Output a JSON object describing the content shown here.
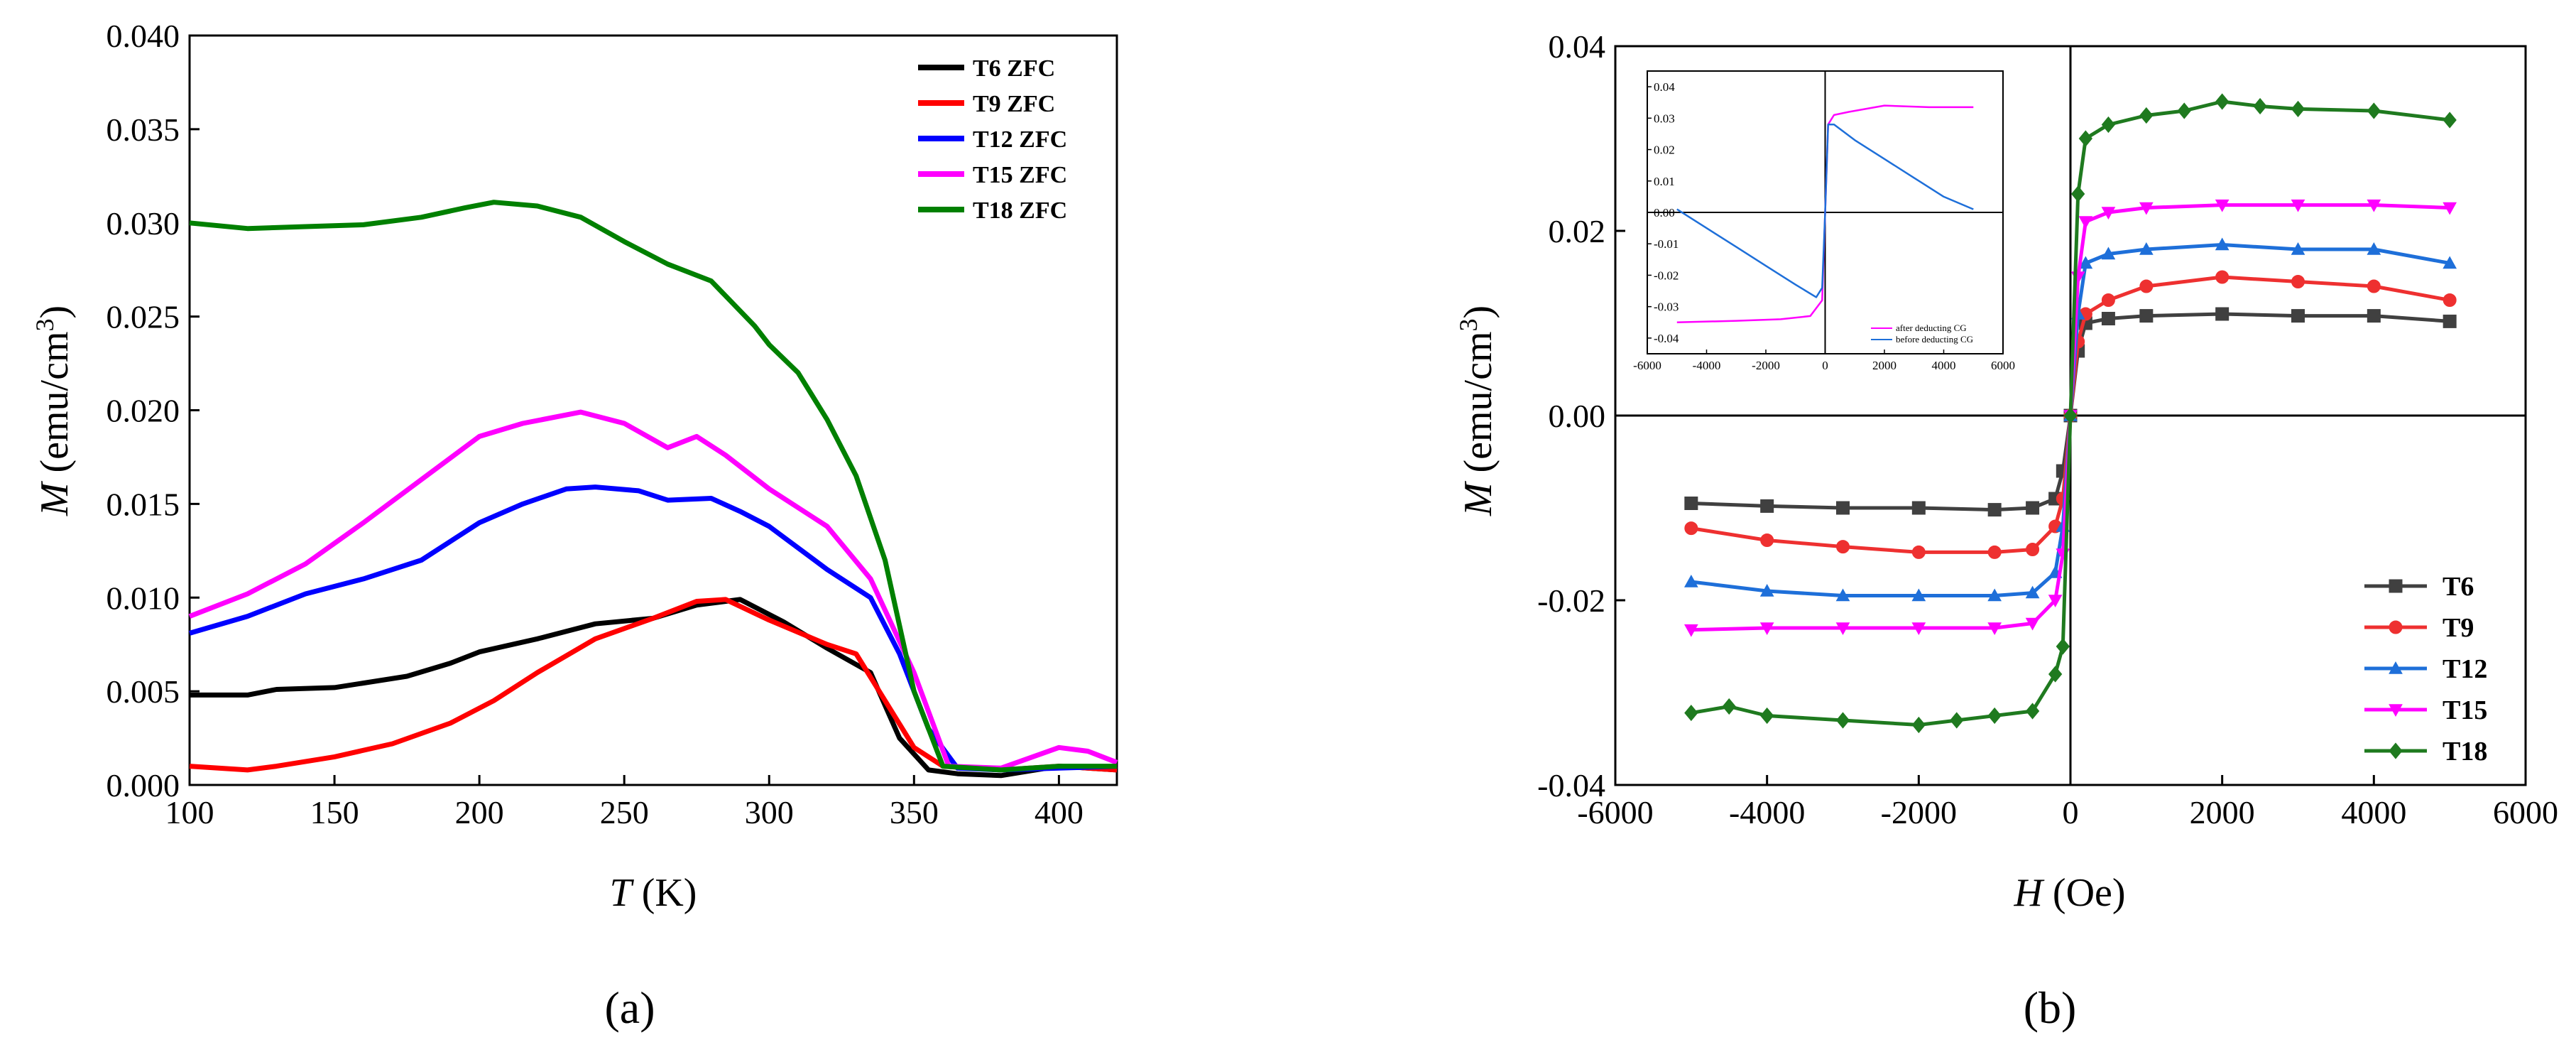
{
  "chart_data": [
    {
      "type": "line",
      "panel": "a",
      "caption": "(a)",
      "xlabel_symbol": "T",
      "xlabel_unit": " (K)",
      "ylabel_symbol": "M",
      "ylabel_unit": " (emu/cm",
      "ylabel_sup": "3",
      "ylabel_close": ")",
      "xlim": [
        100,
        420
      ],
      "ylim": [
        0,
        0.04
      ],
      "xticks": [
        {
          "v": 100,
          "label": "100"
        },
        {
          "v": 150,
          "label": "150"
        },
        {
          "v": 200,
          "label": "200"
        },
        {
          "v": 250,
          "label": "250"
        },
        {
          "v": 300,
          "label": "300"
        },
        {
          "v": 350,
          "label": "350"
        },
        {
          "v": 400,
          "label": "400"
        }
      ],
      "yticks": [
        {
          "v": 0,
          "label": "0.000"
        },
        {
          "v": 0.005,
          "label": "0.005"
        },
        {
          "v": 0.01,
          "label": "0.010"
        },
        {
          "v": 0.015,
          "label": "0.015"
        },
        {
          "v": 0.02,
          "label": "0.020"
        },
        {
          "v": 0.025,
          "label": "0.025"
        },
        {
          "v": 0.03,
          "label": "0.030"
        },
        {
          "v": 0.035,
          "label": "0.035"
        },
        {
          "v": 0.04,
          "label": "0.040"
        }
      ],
      "legend_position": "top-right",
      "series": [
        {
          "name": "T6 ZFC",
          "color": "#000000",
          "x": [
            100,
            120,
            130,
            150,
            175,
            190,
            200,
            220,
            240,
            260,
            275,
            290,
            305,
            320,
            335,
            345,
            355,
            365,
            380,
            400,
            420
          ],
          "y": [
            0.0048,
            0.0048,
            0.0051,
            0.0052,
            0.0058,
            0.0065,
            0.0071,
            0.0078,
            0.0086,
            0.0089,
            0.0096,
            0.0099,
            0.0087,
            0.0073,
            0.006,
            0.0025,
            0.0008,
            0.0006,
            0.0005,
            0.001,
            0.0008
          ]
        },
        {
          "name": "T9 ZFC",
          "color": "#ff0000",
          "x": [
            100,
            120,
            130,
            150,
            170,
            190,
            205,
            220,
            240,
            260,
            275,
            285,
            300,
            320,
            330,
            340,
            350,
            360,
            380,
            400,
            420
          ],
          "y": [
            0.001,
            0.0008,
            0.001,
            0.0015,
            0.0022,
            0.0033,
            0.0045,
            0.006,
            0.0078,
            0.0089,
            0.0098,
            0.0099,
            0.0088,
            0.0075,
            0.007,
            0.0045,
            0.002,
            0.001,
            0.0008,
            0.001,
            0.0008
          ]
        },
        {
          "name": "T12 ZFC",
          "color": "#0000ff",
          "x": [
            100,
            120,
            140,
            160,
            180,
            200,
            215,
            230,
            240,
            255,
            265,
            280,
            290,
            300,
            320,
            335,
            345,
            355,
            365,
            380,
            400,
            420
          ],
          "y": [
            0.0081,
            0.009,
            0.0102,
            0.011,
            0.012,
            0.014,
            0.015,
            0.0158,
            0.0159,
            0.0157,
            0.0152,
            0.0153,
            0.0146,
            0.0138,
            0.0115,
            0.01,
            0.007,
            0.003,
            0.0009,
            0.0008,
            0.0009,
            0.001
          ]
        },
        {
          "name": "T15 ZFC",
          "color": "#ff00ff",
          "x": [
            100,
            120,
            140,
            160,
            180,
            200,
            215,
            235,
            250,
            265,
            275,
            285,
            300,
            320,
            335,
            350,
            362,
            380,
            400,
            410,
            420
          ],
          "y": [
            0.009,
            0.0102,
            0.0118,
            0.014,
            0.0163,
            0.0186,
            0.0193,
            0.0199,
            0.0193,
            0.018,
            0.0186,
            0.0176,
            0.0158,
            0.0138,
            0.011,
            0.006,
            0.001,
            0.0009,
            0.002,
            0.0018,
            0.0012
          ]
        },
        {
          "name": "T18 ZFC",
          "color": "#008000",
          "x": [
            100,
            120,
            140,
            160,
            180,
            195,
            205,
            220,
            235,
            250,
            265,
            280,
            295,
            300,
            310,
            320,
            330,
            340,
            350,
            360,
            380,
            400,
            420
          ],
          "y": [
            0.03,
            0.0297,
            0.0298,
            0.0299,
            0.0303,
            0.0308,
            0.0311,
            0.0309,
            0.0303,
            0.029,
            0.0278,
            0.0269,
            0.0245,
            0.0235,
            0.022,
            0.0195,
            0.0165,
            0.012,
            0.005,
            0.001,
            0.0008,
            0.001,
            0.001
          ]
        }
      ]
    },
    {
      "type": "line",
      "panel": "b",
      "caption": "(b)",
      "xlabel_symbol": "H",
      "xlabel_unit": " (Oe)",
      "ylabel_symbol": "M",
      "ylabel_unit": " (emu/cm",
      "ylabel_sup": "3",
      "ylabel_close": ")",
      "xlim": [
        -6000,
        6000
      ],
      "ylim": [
        -0.04,
        0.04
      ],
      "xticks": [
        {
          "v": -6000,
          "label": "-6000"
        },
        {
          "v": -4000,
          "label": "-4000"
        },
        {
          "v": -2000,
          "label": "-2000"
        },
        {
          "v": 0,
          "label": "0"
        },
        {
          "v": 2000,
          "label": "2000"
        },
        {
          "v": 4000,
          "label": "4000"
        },
        {
          "v": 6000,
          "label": "6000"
        }
      ],
      "yticks": [
        {
          "v": -0.04,
          "label": "-0.04"
        },
        {
          "v": -0.02,
          "label": "-0.02"
        },
        {
          "v": 0,
          "label": "0.00"
        },
        {
          "v": 0.02,
          "label": "0.02"
        },
        {
          "v": 0.04,
          "label": "0.04"
        }
      ],
      "legend_position": "bottom-right",
      "series": [
        {
          "name": "T6",
          "color": "#404040",
          "marker": "square",
          "x": [
            -5000,
            -4000,
            -3000,
            -2000,
            -1000,
            -500,
            -200,
            -100,
            0,
            100,
            200,
            500,
            1000,
            2000,
            3000,
            4000,
            5000
          ],
          "y": [
            -0.0095,
            -0.0098,
            -0.01,
            -0.01,
            -0.0102,
            -0.01,
            -0.009,
            -0.006,
            0,
            0.007,
            0.01,
            0.0105,
            0.0108,
            0.011,
            0.0108,
            0.0108,
            0.0102
          ]
        },
        {
          "name": "T9",
          "color": "#ee3030",
          "marker": "circle",
          "x": [
            -5000,
            -4000,
            -3000,
            -2000,
            -1000,
            -500,
            -200,
            -100,
            0,
            100,
            200,
            500,
            1000,
            2000,
            3000,
            4000,
            5000
          ],
          "y": [
            -0.0122,
            -0.0135,
            -0.0142,
            -0.0148,
            -0.0148,
            -0.0145,
            -0.012,
            -0.009,
            0,
            0.008,
            0.011,
            0.0125,
            0.014,
            0.015,
            0.0145,
            0.014,
            0.0125
          ]
        },
        {
          "name": "T12",
          "color": "#1e6fd9",
          "marker": "triangle-up",
          "x": [
            -5000,
            -4000,
            -3000,
            -2000,
            -1000,
            -500,
            -200,
            -100,
            0,
            100,
            200,
            500,
            1000,
            2000,
            3000,
            4000,
            5000
          ],
          "y": [
            -0.018,
            -0.019,
            -0.0195,
            -0.0195,
            -0.0195,
            -0.0192,
            -0.017,
            -0.012,
            0,
            0.011,
            0.0165,
            0.0175,
            0.018,
            0.0185,
            0.018,
            0.018,
            0.0165
          ]
        },
        {
          "name": "T15",
          "color": "#ff00ff",
          "marker": "triangle-down",
          "x": [
            -5000,
            -4000,
            -3000,
            -2000,
            -1000,
            -500,
            -200,
            -100,
            0,
            100,
            200,
            500,
            1000,
            2000,
            3000,
            4000,
            5000
          ],
          "y": [
            -0.0232,
            -0.023,
            -0.023,
            -0.023,
            -0.023,
            -0.0225,
            -0.02,
            -0.015,
            0,
            0.015,
            0.021,
            0.022,
            0.0225,
            0.0228,
            0.0228,
            0.0228,
            0.0225
          ]
        },
        {
          "name": "T18",
          "color": "#1f7a1f",
          "marker": "diamond",
          "x": [
            -5000,
            -4500,
            -4000,
            -3000,
            -2000,
            -1500,
            -1000,
            -500,
            -200,
            -100,
            0,
            100,
            200,
            500,
            1000,
            1500,
            2000,
            2500,
            3000,
            4000,
            5000
          ],
          "y": [
            -0.0322,
            -0.0315,
            -0.0325,
            -0.033,
            -0.0335,
            -0.033,
            -0.0325,
            -0.032,
            -0.028,
            -0.025,
            0,
            0.024,
            0.03,
            0.0315,
            0.0325,
            0.033,
            0.034,
            0.0335,
            0.0332,
            0.033,
            0.032
          ]
        }
      ],
      "inset": {
        "xlim": [
          -6000,
          6000
        ],
        "ylim": [
          -0.045,
          0.045
        ],
        "xticks": [
          {
            "v": -6000,
            "label": "-6000"
          },
          {
            "v": -4000,
            "label": "-4000"
          },
          {
            "v": -2000,
            "label": "-2000"
          },
          {
            "v": 0,
            "label": "0"
          },
          {
            "v": 2000,
            "label": "2000"
          },
          {
            "v": 4000,
            "label": "4000"
          },
          {
            "v": 6000,
            "label": "6000"
          }
        ],
        "yticks": [
          {
            "v": 0.04,
            "label": "0.04"
          },
          {
            "v": 0.03,
            "label": "0.03"
          },
          {
            "v": 0.02,
            "label": "0.02"
          },
          {
            "v": 0.01,
            "label": "0.01"
          },
          {
            "v": 0,
            "label": "0.00"
          },
          {
            "v": -0.01,
            "label": "-0.01"
          },
          {
            "v": -0.02,
            "label": "-0.02"
          },
          {
            "v": -0.03,
            "label": "-0.03"
          },
          {
            "v": -0.04,
            "label": "-0.04"
          }
        ],
        "series": [
          {
            "name": "after deducting CG",
            "color": "#ff00ff",
            "x": [
              -5000,
              -3000,
              -1500,
              -500,
              -100,
              0,
              100,
              300,
              800,
              2000,
              3500,
              5000
            ],
            "y": [
              -0.035,
              -0.0345,
              -0.034,
              -0.033,
              -0.028,
              0,
              0.028,
              0.031,
              0.032,
              0.034,
              0.0335,
              0.0335
            ]
          },
          {
            "name": "before deducting CG",
            "color": "#1e6fd9",
            "x": [
              -5000,
              -4000,
              -3000,
              -2000,
              -1000,
              -300,
              -100,
              0,
              100,
              300,
              1000,
              2000,
              3000,
              4000,
              5000
            ],
            "y": [
              0.001,
              -0.005,
              -0.011,
              -0.017,
              -0.023,
              -0.027,
              -0.024,
              0,
              0.028,
              0.028,
              0.023,
              0.017,
              0.011,
              0.005,
              0.001
            ]
          }
        ]
      }
    }
  ]
}
